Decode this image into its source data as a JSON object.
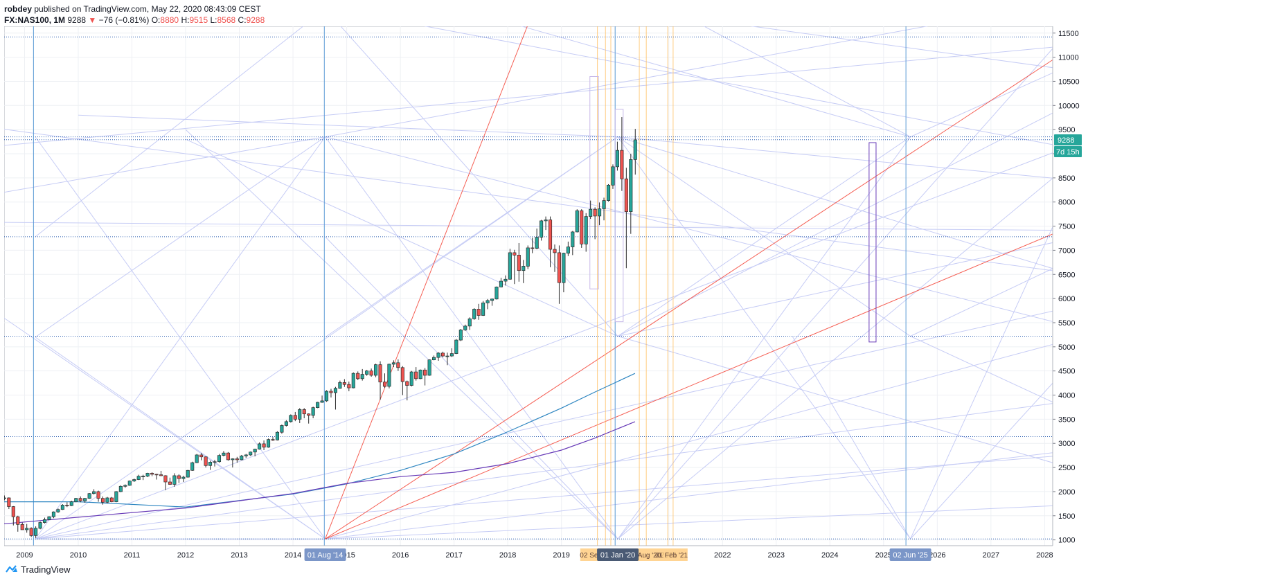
{
  "header": {
    "author": "robdey",
    "published": "published on TradingView.com, May 22, 2020 08:43:09 CEST",
    "symbol": "FX:NAS100, 1M",
    "last": "9288",
    "arrow": "▼",
    "change": "−76 (−0.81%)",
    "o_label": "O:",
    "o_value": "8880",
    "h_label": "H:",
    "h_value": "9515",
    "l_label": "L:",
    "l_value": "8568",
    "c_label": "C:",
    "c_value": "9288"
  },
  "footer": {
    "brand": "TradingView",
    "logo_icon": "tradingview-logo-icon"
  },
  "colors": {
    "up": "#26a69a",
    "down": "#ef5350",
    "grid": "#eef0f4",
    "fan": "#c6ccf5",
    "gann_red": "#f44336",
    "blue_line": "#5b9bd5",
    "ma_fast": "#2e86c1",
    "ma_slow": "#673ab7",
    "last_price_bg": "#26a69a",
    "date_badge": "#7b96c8",
    "orange_line": "#ffb74d"
  },
  "chart_data": {
    "type": "candlestick",
    "interval": "1M",
    "y_axis": {
      "side": "right",
      "ylim": [
        880,
        11640
      ],
      "ticks": [
        1000,
        1500,
        2000,
        2500,
        3000,
        3500,
        4000,
        4500,
        5000,
        5500,
        6000,
        6500,
        7000,
        7500,
        8000,
        8500,
        9000,
        9500,
        10000,
        10500,
        11000,
        11500
      ]
    },
    "x_axis": {
      "ticks": [
        "2009",
        "2010",
        "2011",
        "2012",
        "2013",
        "2014",
        "2015",
        "2016",
        "2017",
        "2018",
        "2019",
        "2020",
        "2021",
        "2022",
        "2023",
        "2024",
        "2025",
        "2026",
        "2027",
        "2028"
      ]
    },
    "last_price": "9288",
    "countdown": "7d 15h",
    "date_badges": [
      "01 Aug '14",
      "01 Jan '20",
      "02 Jun '25"
    ],
    "orange_badges": [
      "02 Sep '19",
      "01 Aug '20",
      "01 Feb '21"
    ],
    "horizontal_levels": [
      1020,
      3140,
      5220,
      7280,
      9290,
      9350,
      11420
    ],
    "vertical_lines": [
      "2009-03",
      "2014-08",
      "2020-01",
      "2025-06"
    ],
    "candles": [
      {
        "t": "2008-06",
        "o": 1990,
        "h": 2040,
        "l": 1790,
        "c": 1840
      },
      {
        "t": "2008-07",
        "o": 1840,
        "h": 1900,
        "l": 1780,
        "c": 1860
      },
      {
        "t": "2008-08",
        "o": 1860,
        "h": 1920,
        "l": 1820,
        "c": 1870
      },
      {
        "t": "2008-09",
        "o": 1870,
        "h": 1880,
        "l": 1640,
        "c": 1690
      },
      {
        "t": "2008-10",
        "o": 1690,
        "h": 1700,
        "l": 1300,
        "c": 1480
      },
      {
        "t": "2008-11",
        "o": 1480,
        "h": 1500,
        "l": 1170,
        "c": 1320
      },
      {
        "t": "2008-12",
        "o": 1320,
        "h": 1360,
        "l": 1220,
        "c": 1210
      },
      {
        "t": "2009-01",
        "o": 1210,
        "h": 1330,
        "l": 1150,
        "c": 1240
      },
      {
        "t": "2009-02",
        "o": 1240,
        "h": 1260,
        "l": 1060,
        "c": 1090
      },
      {
        "t": "2009-03",
        "o": 1090,
        "h": 1280,
        "l": 1040,
        "c": 1240
      },
      {
        "t": "2009-04",
        "o": 1240,
        "h": 1380,
        "l": 1220,
        "c": 1360
      },
      {
        "t": "2009-05",
        "o": 1360,
        "h": 1460,
        "l": 1340,
        "c": 1420
      },
      {
        "t": "2009-06",
        "o": 1420,
        "h": 1490,
        "l": 1410,
        "c": 1480
      },
      {
        "t": "2009-07",
        "o": 1480,
        "h": 1590,
        "l": 1450,
        "c": 1580
      },
      {
        "t": "2009-08",
        "o": 1580,
        "h": 1650,
        "l": 1560,
        "c": 1630
      },
      {
        "t": "2009-09",
        "o": 1630,
        "h": 1740,
        "l": 1620,
        "c": 1720
      },
      {
        "t": "2009-10",
        "o": 1720,
        "h": 1780,
        "l": 1680,
        "c": 1710
      },
      {
        "t": "2009-11",
        "o": 1710,
        "h": 1810,
        "l": 1700,
        "c": 1790
      },
      {
        "t": "2009-12",
        "o": 1790,
        "h": 1870,
        "l": 1780,
        "c": 1860
      },
      {
        "t": "2010-01",
        "o": 1860,
        "h": 1900,
        "l": 1780,
        "c": 1810
      },
      {
        "t": "2010-02",
        "o": 1810,
        "h": 1870,
        "l": 1770,
        "c": 1860
      },
      {
        "t": "2010-03",
        "o": 1860,
        "h": 1970,
        "l": 1850,
        "c": 1960
      },
      {
        "t": "2010-04",
        "o": 1960,
        "h": 2050,
        "l": 1940,
        "c": 2000
      },
      {
        "t": "2010-05",
        "o": 2000,
        "h": 2020,
        "l": 1790,
        "c": 1860
      },
      {
        "t": "2010-06",
        "o": 1860,
        "h": 1900,
        "l": 1730,
        "c": 1780
      },
      {
        "t": "2010-07",
        "o": 1780,
        "h": 1890,
        "l": 1760,
        "c": 1870
      },
      {
        "t": "2010-08",
        "o": 1870,
        "h": 1890,
        "l": 1780,
        "c": 1790
      },
      {
        "t": "2010-09",
        "o": 1790,
        "h": 2010,
        "l": 1780,
        "c": 2000
      },
      {
        "t": "2010-10",
        "o": 2000,
        "h": 2130,
        "l": 1990,
        "c": 2110
      },
      {
        "t": "2010-11",
        "o": 2110,
        "h": 2150,
        "l": 2080,
        "c": 2130
      },
      {
        "t": "2010-12",
        "o": 2130,
        "h": 2230,
        "l": 2120,
        "c": 2220
      },
      {
        "t": "2011-01",
        "o": 2220,
        "h": 2270,
        "l": 2200,
        "c": 2250
      },
      {
        "t": "2011-02",
        "o": 2250,
        "h": 2350,
        "l": 2240,
        "c": 2320
      },
      {
        "t": "2011-03",
        "o": 2320,
        "h": 2350,
        "l": 2240,
        "c": 2320
      },
      {
        "t": "2011-04",
        "o": 2320,
        "h": 2390,
        "l": 2300,
        "c": 2380
      },
      {
        "t": "2011-05",
        "o": 2380,
        "h": 2400,
        "l": 2320,
        "c": 2360
      },
      {
        "t": "2011-06",
        "o": 2360,
        "h": 2370,
        "l": 2250,
        "c": 2350
      },
      {
        "t": "2011-07",
        "o": 2350,
        "h": 2430,
        "l": 2320,
        "c": 2330
      },
      {
        "t": "2011-08",
        "o": 2330,
        "h": 2340,
        "l": 2030,
        "c": 2200
      },
      {
        "t": "2011-09",
        "o": 2200,
        "h": 2290,
        "l": 2140,
        "c": 2150
      },
      {
        "t": "2011-10",
        "o": 2150,
        "h": 2380,
        "l": 2100,
        "c": 2330
      },
      {
        "t": "2011-11",
        "o": 2330,
        "h": 2360,
        "l": 2180,
        "c": 2270
      },
      {
        "t": "2011-12",
        "o": 2270,
        "h": 2330,
        "l": 2200,
        "c": 2300
      },
      {
        "t": "2012-01",
        "o": 2300,
        "h": 2450,
        "l": 2290,
        "c": 2440
      },
      {
        "t": "2012-02",
        "o": 2440,
        "h": 2620,
        "l": 2430,
        "c": 2600
      },
      {
        "t": "2012-03",
        "o": 2600,
        "h": 2780,
        "l": 2590,
        "c": 2760
      },
      {
        "t": "2012-04",
        "o": 2760,
        "h": 2800,
        "l": 2650,
        "c": 2720
      },
      {
        "t": "2012-05",
        "o": 2720,
        "h": 2730,
        "l": 2500,
        "c": 2540
      },
      {
        "t": "2012-06",
        "o": 2540,
        "h": 2640,
        "l": 2450,
        "c": 2610
      },
      {
        "t": "2012-07",
        "o": 2610,
        "h": 2660,
        "l": 2520,
        "c": 2620
      },
      {
        "t": "2012-08",
        "o": 2620,
        "h": 2780,
        "l": 2600,
        "c": 2750
      },
      {
        "t": "2012-09",
        "o": 2750,
        "h": 2840,
        "l": 2730,
        "c": 2800
      },
      {
        "t": "2012-10",
        "o": 2800,
        "h": 2820,
        "l": 2640,
        "c": 2660
      },
      {
        "t": "2012-11",
        "o": 2660,
        "h": 2690,
        "l": 2500,
        "c": 2680
      },
      {
        "t": "2012-12",
        "o": 2680,
        "h": 2720,
        "l": 2600,
        "c": 2660
      },
      {
        "t": "2013-01",
        "o": 2660,
        "h": 2760,
        "l": 2650,
        "c": 2740
      },
      {
        "t": "2013-02",
        "o": 2740,
        "h": 2780,
        "l": 2700,
        "c": 2760
      },
      {
        "t": "2013-03",
        "o": 2760,
        "h": 2830,
        "l": 2740,
        "c": 2820
      },
      {
        "t": "2013-04",
        "o": 2820,
        "h": 2890,
        "l": 2730,
        "c": 2880
      },
      {
        "t": "2013-05",
        "o": 2880,
        "h": 3020,
        "l": 2870,
        "c": 2990
      },
      {
        "t": "2013-06",
        "o": 2990,
        "h": 3060,
        "l": 2860,
        "c": 2920
      },
      {
        "t": "2013-07",
        "o": 2920,
        "h": 3100,
        "l": 2910,
        "c": 3080
      },
      {
        "t": "2013-08",
        "o": 3080,
        "h": 3130,
        "l": 3050,
        "c": 3070
      },
      {
        "t": "2013-09",
        "o": 3070,
        "h": 3250,
        "l": 3060,
        "c": 3230
      },
      {
        "t": "2013-10",
        "o": 3230,
        "h": 3390,
        "l": 3200,
        "c": 3370
      },
      {
        "t": "2013-11",
        "o": 3370,
        "h": 3480,
        "l": 3350,
        "c": 3450
      },
      {
        "t": "2013-12",
        "o": 3450,
        "h": 3600,
        "l": 3430,
        "c": 3580
      },
      {
        "t": "2014-01",
        "o": 3580,
        "h": 3650,
        "l": 3460,
        "c": 3500
      },
      {
        "t": "2014-02",
        "o": 3500,
        "h": 3730,
        "l": 3420,
        "c": 3700
      },
      {
        "t": "2014-03",
        "o": 3700,
        "h": 3730,
        "l": 3520,
        "c": 3610
      },
      {
        "t": "2014-04",
        "o": 3610,
        "h": 3620,
        "l": 3410,
        "c": 3580
      },
      {
        "t": "2014-05",
        "o": 3580,
        "h": 3760,
        "l": 3520,
        "c": 3740
      },
      {
        "t": "2014-06",
        "o": 3740,
        "h": 3860,
        "l": 3730,
        "c": 3850
      },
      {
        "t": "2014-07",
        "o": 3850,
        "h": 3990,
        "l": 3840,
        "c": 3880
      },
      {
        "t": "2014-08",
        "o": 3880,
        "h": 4100,
        "l": 3860,
        "c": 4080
      },
      {
        "t": "2014-09",
        "o": 4080,
        "h": 4130,
        "l": 3950,
        "c": 4050
      },
      {
        "t": "2014-10",
        "o": 4050,
        "h": 4170,
        "l": 3700,
        "c": 4140
      },
      {
        "t": "2014-11",
        "o": 4140,
        "h": 4300,
        "l": 4130,
        "c": 4260
      },
      {
        "t": "2014-12",
        "o": 4260,
        "h": 4330,
        "l": 4170,
        "c": 4220
      },
      {
        "t": "2015-01",
        "o": 4220,
        "h": 4280,
        "l": 4080,
        "c": 4150
      },
      {
        "t": "2015-02",
        "o": 4150,
        "h": 4470,
        "l": 4140,
        "c": 4450
      },
      {
        "t": "2015-03",
        "o": 4450,
        "h": 4490,
        "l": 4310,
        "c": 4340
      },
      {
        "t": "2015-04",
        "o": 4340,
        "h": 4540,
        "l": 4300,
        "c": 4430
      },
      {
        "t": "2015-05",
        "o": 4430,
        "h": 4520,
        "l": 4400,
        "c": 4500
      },
      {
        "t": "2015-06",
        "o": 4500,
        "h": 4550,
        "l": 4380,
        "c": 4410
      },
      {
        "t": "2015-07",
        "o": 4410,
        "h": 4650,
        "l": 4370,
        "c": 4630
      },
      {
        "t": "2015-08",
        "o": 4630,
        "h": 4700,
        "l": 3900,
        "c": 4270
      },
      {
        "t": "2015-09",
        "o": 4270,
        "h": 4450,
        "l": 4150,
        "c": 4180
      },
      {
        "t": "2015-10",
        "o": 4180,
        "h": 4650,
        "l": 4140,
        "c": 4640
      },
      {
        "t": "2015-11",
        "o": 4640,
        "h": 4720,
        "l": 4580,
        "c": 4670
      },
      {
        "t": "2015-12",
        "o": 4670,
        "h": 4740,
        "l": 4500,
        "c": 4570
      },
      {
        "t": "2016-01",
        "o": 4570,
        "h": 4600,
        "l": 4000,
        "c": 4280
      },
      {
        "t": "2016-02",
        "o": 4280,
        "h": 4300,
        "l": 3890,
        "c": 4200
      },
      {
        "t": "2016-03",
        "o": 4200,
        "h": 4500,
        "l": 4180,
        "c": 4480
      },
      {
        "t": "2016-04",
        "o": 4480,
        "h": 4580,
        "l": 4300,
        "c": 4340
      },
      {
        "t": "2016-05",
        "o": 4340,
        "h": 4530,
        "l": 4330,
        "c": 4520
      },
      {
        "t": "2016-06",
        "o": 4520,
        "h": 4560,
        "l": 4200,
        "c": 4410
      },
      {
        "t": "2016-07",
        "o": 4410,
        "h": 4740,
        "l": 4400,
        "c": 4730
      },
      {
        "t": "2016-08",
        "o": 4730,
        "h": 4820,
        "l": 4720,
        "c": 4780
      },
      {
        "t": "2016-09",
        "o": 4780,
        "h": 4890,
        "l": 4710,
        "c": 4870
      },
      {
        "t": "2016-10",
        "o": 4870,
        "h": 4900,
        "l": 4780,
        "c": 4810
      },
      {
        "t": "2016-11",
        "o": 4810,
        "h": 4880,
        "l": 4620,
        "c": 4810
      },
      {
        "t": "2016-12",
        "o": 4810,
        "h": 4970,
        "l": 4790,
        "c": 4860
      },
      {
        "t": "2017-01",
        "o": 4860,
        "h": 5160,
        "l": 4850,
        "c": 5140
      },
      {
        "t": "2017-02",
        "o": 5140,
        "h": 5370,
        "l": 5120,
        "c": 5350
      },
      {
        "t": "2017-03",
        "o": 5350,
        "h": 5460,
        "l": 5330,
        "c": 5430
      },
      {
        "t": "2017-04",
        "o": 5430,
        "h": 5610,
        "l": 5350,
        "c": 5580
      },
      {
        "t": "2017-05",
        "o": 5580,
        "h": 5800,
        "l": 5560,
        "c": 5780
      },
      {
        "t": "2017-06",
        "o": 5780,
        "h": 5890,
        "l": 5560,
        "c": 5650
      },
      {
        "t": "2017-07",
        "o": 5650,
        "h": 5950,
        "l": 5640,
        "c": 5910
      },
      {
        "t": "2017-08",
        "o": 5910,
        "h": 5990,
        "l": 5780,
        "c": 5960
      },
      {
        "t": "2017-09",
        "o": 5960,
        "h": 6000,
        "l": 5850,
        "c": 5990
      },
      {
        "t": "2017-10",
        "o": 5990,
        "h": 6250,
        "l": 5980,
        "c": 6240
      },
      {
        "t": "2017-11",
        "o": 6240,
        "h": 6430,
        "l": 6230,
        "c": 6360
      },
      {
        "t": "2017-12",
        "o": 6360,
        "h": 6480,
        "l": 6270,
        "c": 6400
      },
      {
        "t": "2018-01",
        "o": 6400,
        "h": 7030,
        "l": 6390,
        "c": 6950
      },
      {
        "t": "2018-02",
        "o": 6950,
        "h": 7010,
        "l": 6300,
        "c": 6900
      },
      {
        "t": "2018-03",
        "o": 6900,
        "h": 7150,
        "l": 6350,
        "c": 6580
      },
      {
        "t": "2018-04",
        "o": 6580,
        "h": 6800,
        "l": 6320,
        "c": 6670
      },
      {
        "t": "2018-05",
        "o": 6670,
        "h": 7100,
        "l": 6610,
        "c": 7050
      },
      {
        "t": "2018-06",
        "o": 7050,
        "h": 7260,
        "l": 6940,
        "c": 7040
      },
      {
        "t": "2018-07",
        "o": 7040,
        "h": 7450,
        "l": 7020,
        "c": 7270
      },
      {
        "t": "2018-08",
        "o": 7270,
        "h": 7630,
        "l": 7200,
        "c": 7610
      },
      {
        "t": "2018-09",
        "o": 7610,
        "h": 7700,
        "l": 7420,
        "c": 7630
      },
      {
        "t": "2018-10",
        "o": 7630,
        "h": 7700,
        "l": 6650,
        "c": 7020
      },
      {
        "t": "2018-11",
        "o": 7020,
        "h": 7120,
        "l": 6550,
        "c": 6950
      },
      {
        "t": "2018-12",
        "o": 6950,
        "h": 7100,
        "l": 5890,
        "c": 6330
      },
      {
        "t": "2019-01",
        "o": 6330,
        "h": 6950,
        "l": 6130,
        "c": 6940
      },
      {
        "t": "2019-02",
        "o": 6940,
        "h": 7180,
        "l": 6880,
        "c": 7070
      },
      {
        "t": "2019-03",
        "o": 7070,
        "h": 7400,
        "l": 6900,
        "c": 7380
      },
      {
        "t": "2019-04",
        "o": 7380,
        "h": 7850,
        "l": 7370,
        "c": 7820
      },
      {
        "t": "2019-05",
        "o": 7820,
        "h": 7850,
        "l": 7050,
        "c": 7130
      },
      {
        "t": "2019-06",
        "o": 7130,
        "h": 7770,
        "l": 6970,
        "c": 7700
      },
      {
        "t": "2019-07",
        "o": 7700,
        "h": 8030,
        "l": 7650,
        "c": 7850
      },
      {
        "t": "2019-08",
        "o": 7850,
        "h": 7890,
        "l": 7230,
        "c": 7710
      },
      {
        "t": "2019-09",
        "o": 7710,
        "h": 7990,
        "l": 7520,
        "c": 7860
      },
      {
        "t": "2019-10",
        "o": 7860,
        "h": 8090,
        "l": 7620,
        "c": 8030
      },
      {
        "t": "2019-11",
        "o": 8030,
        "h": 8370,
        "l": 8010,
        "c": 8350
      },
      {
        "t": "2019-12",
        "o": 8350,
        "h": 8780,
        "l": 8270,
        "c": 8730
      },
      {
        "t": "2020-01",
        "o": 8730,
        "h": 9250,
        "l": 8650,
        "c": 9070
      },
      {
        "t": "2020-02",
        "o": 9070,
        "h": 9760,
        "l": 8230,
        "c": 8480
      },
      {
        "t": "2020-03",
        "o": 8480,
        "h": 8710,
        "l": 6630,
        "c": 7800
      },
      {
        "t": "2020-04",
        "o": 7800,
        "h": 9000,
        "l": 7340,
        "c": 8880
      },
      {
        "t": "2020-05",
        "o": 8880,
        "h": 9515,
        "l": 8568,
        "c": 9288
      }
    ]
  }
}
